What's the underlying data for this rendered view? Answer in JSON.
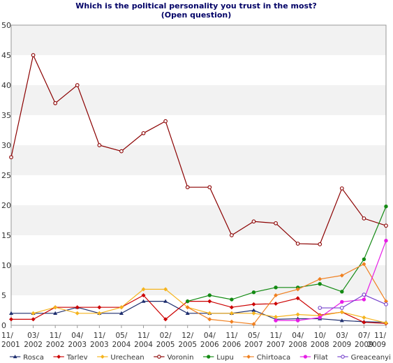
{
  "chart_data": {
    "type": "line",
    "title": "Which is the political personality you trust in the most?",
    "subtitle": "(Open question)",
    "ylim": [
      0,
      50
    ],
    "yticks": [
      0,
      5,
      10,
      15,
      20,
      25,
      30,
      35,
      40,
      45,
      50
    ],
    "grid": "horizontal bands",
    "legend_position": "bottom",
    "categories": [
      [
        "11/",
        "2001"
      ],
      [
        "03/",
        "2002"
      ],
      [
        "11/",
        "2002"
      ],
      [
        "04/",
        "2003"
      ],
      [
        "11/",
        "2003"
      ],
      [
        "05/",
        "2004"
      ],
      [
        "11/",
        "2004"
      ],
      [
        "02/",
        "2005"
      ],
      [
        "12/",
        "2005"
      ],
      [
        "04/",
        "2006"
      ],
      [
        "11/",
        "2006"
      ],
      [
        "05/",
        "2007"
      ],
      [
        "11/",
        "2007"
      ],
      [
        "04/",
        "2008"
      ],
      [
        "10/",
        "2008"
      ],
      [
        "03/",
        "2009"
      ],
      [
        "07/",
        "2009"
      ],
      [
        "11/",
        "2009"
      ]
    ],
    "series": [
      {
        "name": "Rosca",
        "color": "#1f2f6f",
        "marker": "triangle",
        "values": [
          2,
          2,
          2,
          3,
          2,
          2,
          4,
          4,
          2,
          2,
          2,
          2.5,
          1,
          1.1,
          1.1,
          0.8,
          0.6,
          0.5
        ]
      },
      {
        "name": "Tarlev",
        "color": "#cc0000",
        "marker": "diamond",
        "values": [
          1,
          1,
          3,
          3,
          3,
          3,
          5,
          1,
          4,
          4,
          3,
          3.5,
          3.6,
          4.5,
          1.7,
          2.2,
          0.5,
          0.3
        ]
      },
      {
        "name": "Urechean",
        "color": "#f5b41e",
        "marker": "diamond",
        "values": [
          null,
          2,
          3,
          2,
          2,
          3,
          6,
          6,
          3,
          2,
          2,
          2,
          1.4,
          1.8,
          1.6,
          2.2,
          1.3,
          0.4
        ]
      },
      {
        "name": "Voronin",
        "color": "#8b0000",
        "marker": "open-circle",
        "values": [
          28,
          45,
          37,
          40,
          30,
          29,
          32,
          34,
          23,
          23,
          15,
          17.3,
          17,
          13.6,
          13.5,
          22.8,
          17.8,
          16.6
        ]
      },
      {
        "name": "Lupu",
        "color": "#138a13",
        "marker": "circle",
        "values": [
          null,
          null,
          null,
          null,
          null,
          null,
          null,
          null,
          4,
          5,
          4.3,
          5.5,
          6.3,
          6.3,
          6.9,
          5.6,
          11,
          19.8
        ]
      },
      {
        "name": "Chirtoaca",
        "color": "#f08020",
        "marker": "diamond",
        "values": [
          null,
          null,
          null,
          null,
          null,
          null,
          null,
          null,
          3,
          1,
          0.6,
          0.2,
          5,
          6,
          7.7,
          8.3,
          10.2,
          4
        ]
      },
      {
        "name": "Filat",
        "color": "#e61ee6",
        "marker": "circle",
        "values": [
          null,
          null,
          null,
          null,
          null,
          null,
          null,
          null,
          null,
          null,
          null,
          null,
          0.8,
          0.8,
          1.3,
          3.9,
          4.3,
          14.1
        ]
      },
      {
        "name": "Greaceanyi",
        "color": "#7744cc",
        "marker": "open-circle",
        "values": [
          null,
          null,
          null,
          null,
          null,
          null,
          null,
          null,
          null,
          null,
          null,
          null,
          null,
          null,
          2.9,
          2.9,
          5.1,
          3.5
        ]
      }
    ]
  }
}
